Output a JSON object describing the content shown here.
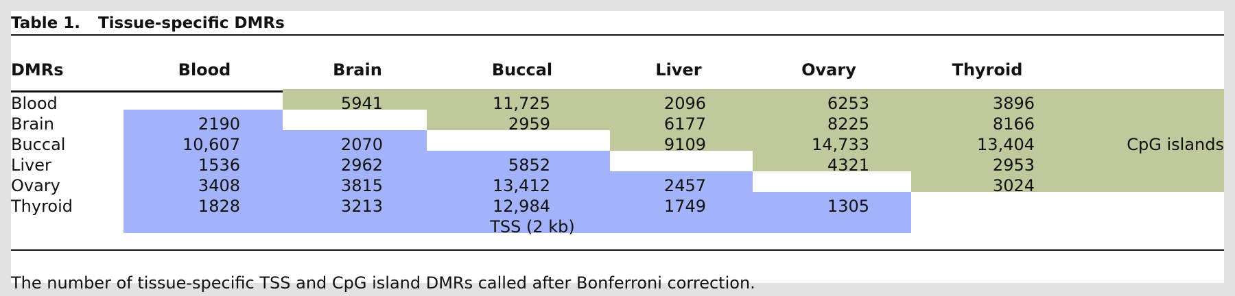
{
  "table": {
    "label": "Table 1.",
    "title": "Tissue-specific DMRs",
    "columns": [
      "DMRs",
      "Blood",
      "Brain",
      "Buccal",
      "Liver",
      "Ovary",
      "Thyroid"
    ],
    "rows": [
      {
        "tissue": "Blood",
        "cells": [
          "",
          "5941",
          "11,725",
          "2096",
          "6253",
          "3896"
        ]
      },
      {
        "tissue": "Brain",
        "cells": [
          "2190",
          "",
          "2959",
          "6177",
          "8225",
          "8166"
        ]
      },
      {
        "tissue": "Buccal",
        "cells": [
          "10,607",
          "2070",
          "",
          "9109",
          "14,733",
          "13,404"
        ]
      },
      {
        "tissue": "Liver",
        "cells": [
          "1536",
          "2962",
          "5852",
          "",
          "4321",
          "2953"
        ]
      },
      {
        "tissue": "Ovary",
        "cells": [
          "3408",
          "3815",
          "13,412",
          "2457",
          "",
          "3024"
        ]
      },
      {
        "tissue": "Thyroid",
        "cells": [
          "1828",
          "3213",
          "12,984",
          "1749",
          "1305",
          ""
        ]
      }
    ],
    "upper_region_label": "CpG islands",
    "lower_region_label": "TSS (2 kb)",
    "footnote": "The number of tissue-specific TSS and CpG island DMRs called after Bonferroni correction."
  },
  "colors": {
    "cpg_islands": "#bfc99d",
    "tss": "#a2b3fb",
    "background": "#e2e2e2"
  }
}
